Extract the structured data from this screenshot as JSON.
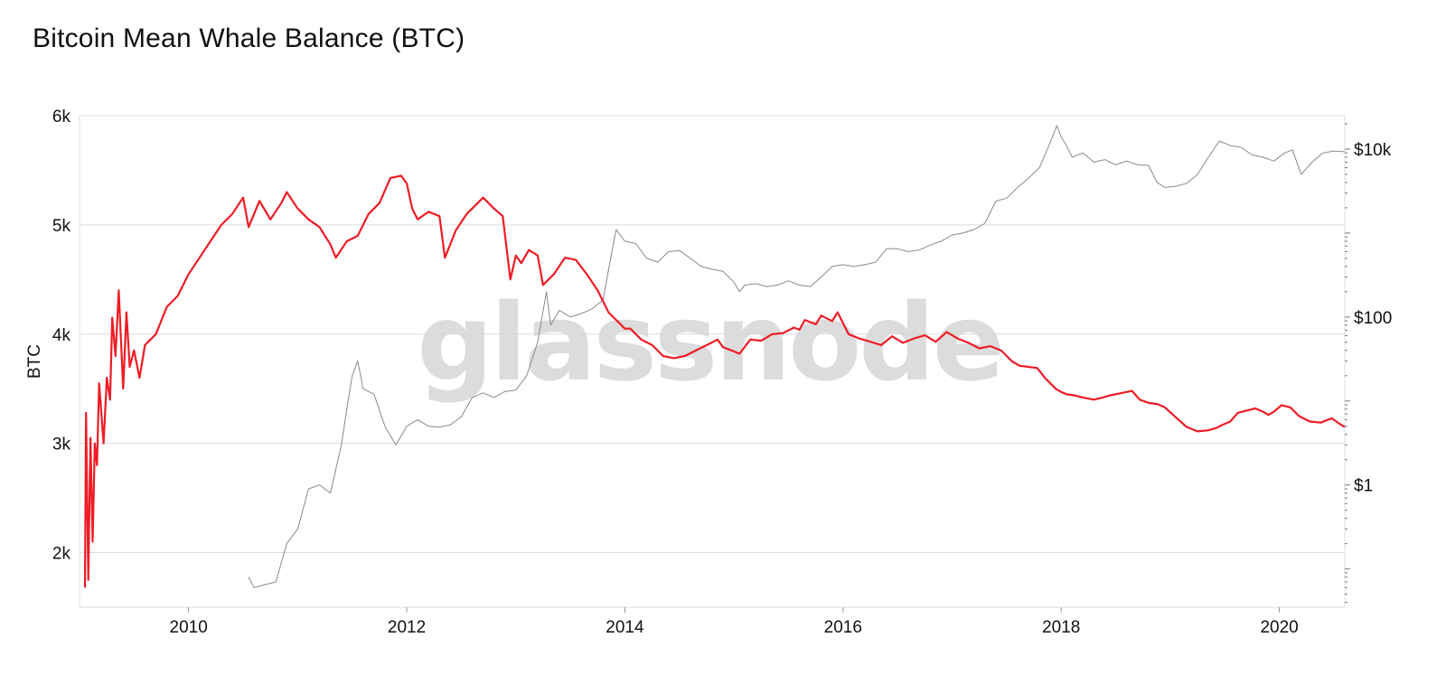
{
  "title": "Bitcoin Mean Whale Balance (BTC)",
  "watermark": "glassnode",
  "chart_data": {
    "type": "line",
    "title": "Bitcoin Mean Whale Balance (BTC)",
    "ylabel": "BTC",
    "ylabel_right": "",
    "grid": true,
    "colors": {
      "whale_balance": "#ee1c25",
      "price": "#8a8a8a",
      "grid": "#dcdcdc",
      "axis_text": "#111111"
    },
    "x_ticks": [
      "2010",
      "2012",
      "2014",
      "2016",
      "2018",
      "2020"
    ],
    "y_ticks": [
      "2k",
      "3k",
      "4k",
      "5k",
      "6k"
    ],
    "y_tick_values": [
      2000,
      3000,
      4000,
      5000,
      6000
    ],
    "y2_ticks": [
      "$1",
      "$100",
      "$10k"
    ],
    "y2_tick_values": [
      1,
      100,
      10000
    ],
    "xlim": [
      2009.0,
      2020.6
    ],
    "ylim": [
      1500,
      6000
    ],
    "y2lim": [
      0.035,
      25000
    ],
    "y2_scale": "log",
    "series": [
      {
        "name": "",
        "axis": "left",
        "points": [
          [
            2009.05,
            1680
          ],
          [
            2009.06,
            3280
          ],
          [
            2009.08,
            1750
          ],
          [
            2009.1,
            3050
          ],
          [
            2009.12,
            2100
          ],
          [
            2009.14,
            3000
          ],
          [
            2009.16,
            2800
          ],
          [
            2009.18,
            3550
          ],
          [
            2009.22,
            3000
          ],
          [
            2009.25,
            3600
          ],
          [
            2009.28,
            3400
          ],
          [
            2009.3,
            4150
          ],
          [
            2009.33,
            3800
          ],
          [
            2009.36,
            4400
          ],
          [
            2009.4,
            3500
          ],
          [
            2009.43,
            4200
          ],
          [
            2009.46,
            3700
          ],
          [
            2009.5,
            3850
          ],
          [
            2009.55,
            3600
          ],
          [
            2009.6,
            3900
          ],
          [
            2009.7,
            4000
          ],
          [
            2009.8,
            4250
          ],
          [
            2009.9,
            4350
          ],
          [
            2010.0,
            4550
          ],
          [
            2010.1,
            4700
          ],
          [
            2010.2,
            4850
          ],
          [
            2010.3,
            5000
          ],
          [
            2010.4,
            5100
          ],
          [
            2010.5,
            5250
          ],
          [
            2010.55,
            4980
          ],
          [
            2010.65,
            5220
          ],
          [
            2010.75,
            5050
          ],
          [
            2010.85,
            5200
          ],
          [
            2010.9,
            5300
          ],
          [
            2011.0,
            5150
          ],
          [
            2011.1,
            5050
          ],
          [
            2011.2,
            4980
          ],
          [
            2011.3,
            4820
          ],
          [
            2011.35,
            4700
          ],
          [
            2011.45,
            4850
          ],
          [
            2011.55,
            4900
          ],
          [
            2011.65,
            5100
          ],
          [
            2011.75,
            5200
          ],
          [
            2011.85,
            5430
          ],
          [
            2011.95,
            5450
          ],
          [
            2012.0,
            5380
          ],
          [
            2012.05,
            5150
          ],
          [
            2012.1,
            5050
          ],
          [
            2012.2,
            5120
          ],
          [
            2012.3,
            5080
          ],
          [
            2012.35,
            4700
          ],
          [
            2012.45,
            4950
          ],
          [
            2012.55,
            5100
          ],
          [
            2012.7,
            5250
          ],
          [
            2012.8,
            5150
          ],
          [
            2012.88,
            5080
          ],
          [
            2012.95,
            4500
          ],
          [
            2013.0,
            4720
          ],
          [
            2013.05,
            4650
          ],
          [
            2013.12,
            4770
          ],
          [
            2013.2,
            4720
          ],
          [
            2013.25,
            4450
          ],
          [
            2013.35,
            4550
          ],
          [
            2013.45,
            4700
          ],
          [
            2013.55,
            4680
          ],
          [
            2013.65,
            4550
          ],
          [
            2013.75,
            4400
          ],
          [
            2013.85,
            4200
          ],
          [
            2013.95,
            4100
          ],
          [
            2014.0,
            4050
          ],
          [
            2014.05,
            4050
          ],
          [
            2014.15,
            3950
          ],
          [
            2014.25,
            3900
          ],
          [
            2014.35,
            3800
          ],
          [
            2014.45,
            3780
          ],
          [
            2014.55,
            3800
          ],
          [
            2014.65,
            3850
          ],
          [
            2014.75,
            3900
          ],
          [
            2014.85,
            3950
          ],
          [
            2014.9,
            3880
          ],
          [
            2014.98,
            3850
          ],
          [
            2015.05,
            3820
          ],
          [
            2015.15,
            3950
          ],
          [
            2015.25,
            3940
          ],
          [
            2015.35,
            4000
          ],
          [
            2015.45,
            4010
          ],
          [
            2015.55,
            4060
          ],
          [
            2015.6,
            4040
          ],
          [
            2015.65,
            4130
          ],
          [
            2015.75,
            4090
          ],
          [
            2015.8,
            4170
          ],
          [
            2015.9,
            4120
          ],
          [
            2015.95,
            4200
          ],
          [
            2016.05,
            4000
          ],
          [
            2016.15,
            3960
          ],
          [
            2016.25,
            3930
          ],
          [
            2016.35,
            3900
          ],
          [
            2016.45,
            3980
          ],
          [
            2016.55,
            3920
          ],
          [
            2016.65,
            3960
          ],
          [
            2016.75,
            3990
          ],
          [
            2016.85,
            3930
          ],
          [
            2016.95,
            4020
          ],
          [
            2017.05,
            3960
          ],
          [
            2017.15,
            3920
          ],
          [
            2017.25,
            3870
          ],
          [
            2017.35,
            3890
          ],
          [
            2017.45,
            3850
          ],
          [
            2017.55,
            3750
          ],
          [
            2017.62,
            3710
          ],
          [
            2017.7,
            3700
          ],
          [
            2017.78,
            3690
          ],
          [
            2017.85,
            3600
          ],
          [
            2017.95,
            3500
          ],
          [
            2018.0,
            3470
          ],
          [
            2018.05,
            3450
          ],
          [
            2018.12,
            3440
          ],
          [
            2018.2,
            3420
          ],
          [
            2018.3,
            3400
          ],
          [
            2018.38,
            3420
          ],
          [
            2018.45,
            3440
          ],
          [
            2018.55,
            3460
          ],
          [
            2018.65,
            3480
          ],
          [
            2018.72,
            3400
          ],
          [
            2018.8,
            3370
          ],
          [
            2018.88,
            3360
          ],
          [
            2018.95,
            3330
          ],
          [
            2019.05,
            3240
          ],
          [
            2019.15,
            3150
          ],
          [
            2019.25,
            3110
          ],
          [
            2019.35,
            3120
          ],
          [
            2019.42,
            3140
          ],
          [
            2019.48,
            3170
          ],
          [
            2019.55,
            3200
          ],
          [
            2019.62,
            3280
          ],
          [
            2019.7,
            3300
          ],
          [
            2019.78,
            3320
          ],
          [
            2019.85,
            3290
          ],
          [
            2019.9,
            3260
          ],
          [
            2019.95,
            3290
          ],
          [
            2020.02,
            3350
          ],
          [
            2020.1,
            3330
          ],
          [
            2020.18,
            3250
          ],
          [
            2020.28,
            3200
          ],
          [
            2020.38,
            3190
          ],
          [
            2020.48,
            3230
          ],
          [
            2020.55,
            3180
          ],
          [
            2020.6,
            3150
          ]
        ]
      },
      {
        "name": "",
        "axis": "right",
        "points": [
          [
            2010.55,
            0.08
          ],
          [
            2010.6,
            0.06
          ],
          [
            2010.7,
            0.065
          ],
          [
            2010.8,
            0.07
          ],
          [
            2010.9,
            0.2
          ],
          [
            2011.0,
            0.3
          ],
          [
            2011.1,
            0.9
          ],
          [
            2011.2,
            1.0
          ],
          [
            2011.3,
            0.8
          ],
          [
            2011.4,
            3.0
          ],
          [
            2011.45,
            8.0
          ],
          [
            2011.5,
            20.0
          ],
          [
            2011.55,
            30.0
          ],
          [
            2011.6,
            14.0
          ],
          [
            2011.7,
            12.0
          ],
          [
            2011.8,
            5.0
          ],
          [
            2011.9,
            3.0
          ],
          [
            2012.0,
            5.0
          ],
          [
            2012.1,
            6.0
          ],
          [
            2012.2,
            5.0
          ],
          [
            2012.3,
            4.9
          ],
          [
            2012.4,
            5.2
          ],
          [
            2012.5,
            6.5
          ],
          [
            2012.6,
            11.0
          ],
          [
            2012.7,
            12.5
          ],
          [
            2012.8,
            11.0
          ],
          [
            2012.9,
            13.0
          ],
          [
            2013.0,
            13.5
          ],
          [
            2013.1,
            20.0
          ],
          [
            2013.2,
            50.0
          ],
          [
            2013.28,
            200.0
          ],
          [
            2013.32,
            80.0
          ],
          [
            2013.4,
            120.0
          ],
          [
            2013.5,
            100.0
          ],
          [
            2013.6,
            110.0
          ],
          [
            2013.7,
            125.0
          ],
          [
            2013.8,
            160.0
          ],
          [
            2013.88,
            600.0
          ],
          [
            2013.92,
            1100.0
          ],
          [
            2014.0,
            800.0
          ],
          [
            2014.1,
            750.0
          ],
          [
            2014.2,
            500.0
          ],
          [
            2014.3,
            450.0
          ],
          [
            2014.4,
            600.0
          ],
          [
            2014.5,
            620.0
          ],
          [
            2014.6,
            500.0
          ],
          [
            2014.7,
            400.0
          ],
          [
            2014.8,
            370.0
          ],
          [
            2014.9,
            350.0
          ],
          [
            2015.0,
            260.0
          ],
          [
            2015.05,
            200.0
          ],
          [
            2015.1,
            240.0
          ],
          [
            2015.2,
            250.0
          ],
          [
            2015.3,
            230.0
          ],
          [
            2015.4,
            240.0
          ],
          [
            2015.5,
            270.0
          ],
          [
            2015.6,
            240.0
          ],
          [
            2015.7,
            230.0
          ],
          [
            2015.8,
            300.0
          ],
          [
            2015.9,
            400.0
          ],
          [
            2016.0,
            420.0
          ],
          [
            2016.1,
            400.0
          ],
          [
            2016.2,
            420.0
          ],
          [
            2016.3,
            450.0
          ],
          [
            2016.4,
            650.0
          ],
          [
            2016.5,
            650.0
          ],
          [
            2016.6,
            600.0
          ],
          [
            2016.7,
            630.0
          ],
          [
            2016.8,
            720.0
          ],
          [
            2016.9,
            800.0
          ],
          [
            2017.0,
            950.0
          ],
          [
            2017.1,
            1000.0
          ],
          [
            2017.2,
            1100.0
          ],
          [
            2017.3,
            1300.0
          ],
          [
            2017.4,
            2400.0
          ],
          [
            2017.5,
            2600.0
          ],
          [
            2017.6,
            3500.0
          ],
          [
            2017.7,
            4500.0
          ],
          [
            2017.8,
            6000.0
          ],
          [
            2017.9,
            12000.0
          ],
          [
            2017.96,
            19000.0
          ],
          [
            2018.0,
            14000.0
          ],
          [
            2018.05,
            11000.0
          ],
          [
            2018.1,
            8000.0
          ],
          [
            2018.2,
            9000.0
          ],
          [
            2018.3,
            7000.0
          ],
          [
            2018.4,
            7500.0
          ],
          [
            2018.5,
            6500.0
          ],
          [
            2018.6,
            7200.0
          ],
          [
            2018.7,
            6500.0
          ],
          [
            2018.8,
            6400.0
          ],
          [
            2018.88,
            4000.0
          ],
          [
            2018.95,
            3500.0
          ],
          [
            2019.05,
            3600.0
          ],
          [
            2019.15,
            3900.0
          ],
          [
            2019.25,
            5000.0
          ],
          [
            2019.35,
            8000.0
          ],
          [
            2019.45,
            12500.0
          ],
          [
            2019.55,
            11000.0
          ],
          [
            2019.65,
            10500.0
          ],
          [
            2019.75,
            8500.0
          ],
          [
            2019.85,
            8000.0
          ],
          [
            2019.95,
            7200.0
          ],
          [
            2020.05,
            9000.0
          ],
          [
            2020.12,
            9800.0
          ],
          [
            2020.2,
            5000.0
          ],
          [
            2020.3,
            7000.0
          ],
          [
            2020.4,
            9000.0
          ],
          [
            2020.5,
            9500.0
          ],
          [
            2020.6,
            9300.0
          ]
        ]
      }
    ]
  }
}
